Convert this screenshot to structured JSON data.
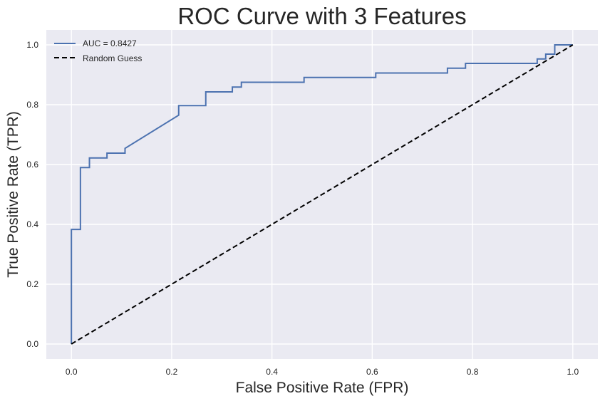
{
  "chart_data": {
    "type": "line",
    "title": "ROC Curve with 3 Features",
    "xlabel": "False Positive Rate (FPR)",
    "ylabel": "True Positive Rate (TPR)",
    "xlim": [
      -0.05,
      1.05
    ],
    "ylim": [
      -0.05,
      1.05
    ],
    "xticks": [
      0.0,
      0.2,
      0.4,
      0.6,
      0.8,
      1.0
    ],
    "yticks": [
      0.0,
      0.2,
      0.4,
      0.6,
      0.8,
      1.0
    ],
    "xtick_labels": [
      "0.0",
      "0.2",
      "0.4",
      "0.6",
      "0.8",
      "1.0"
    ],
    "ytick_labels": [
      "0.0",
      "0.2",
      "0.4",
      "0.6",
      "0.8",
      "1.0"
    ],
    "grid": true,
    "legend_position": "top-left",
    "background_color": "#eaeaf2",
    "series": [
      {
        "name": "AUC = 0.8427",
        "color": "#4c72b0",
        "style": "solid",
        "x": [
          0.0,
          0.0,
          0.018,
          0.018,
          0.036,
          0.036,
          0.071,
          0.071,
          0.107,
          0.107,
          0.214,
          0.214,
          0.268,
          0.268,
          0.321,
          0.321,
          0.339,
          0.339,
          0.464,
          0.464,
          0.607,
          0.607,
          0.75,
          0.75,
          0.786,
          0.786,
          0.929,
          0.929,
          0.946,
          0.946,
          0.964,
          0.964,
          1.0
        ],
        "y": [
          0.0,
          0.383,
          0.383,
          0.59,
          0.59,
          0.622,
          0.622,
          0.638,
          0.638,
          0.654,
          0.765,
          0.797,
          0.797,
          0.843,
          0.843,
          0.859,
          0.859,
          0.875,
          0.875,
          0.891,
          0.891,
          0.906,
          0.906,
          0.922,
          0.922,
          0.938,
          0.938,
          0.953,
          0.953,
          0.969,
          0.969,
          1.0,
          1.0
        ]
      },
      {
        "name": "Random Guess",
        "color": "#000000",
        "style": "dashed",
        "x": [
          0.0,
          1.0
        ],
        "y": [
          0.0,
          1.0
        ]
      }
    ]
  }
}
